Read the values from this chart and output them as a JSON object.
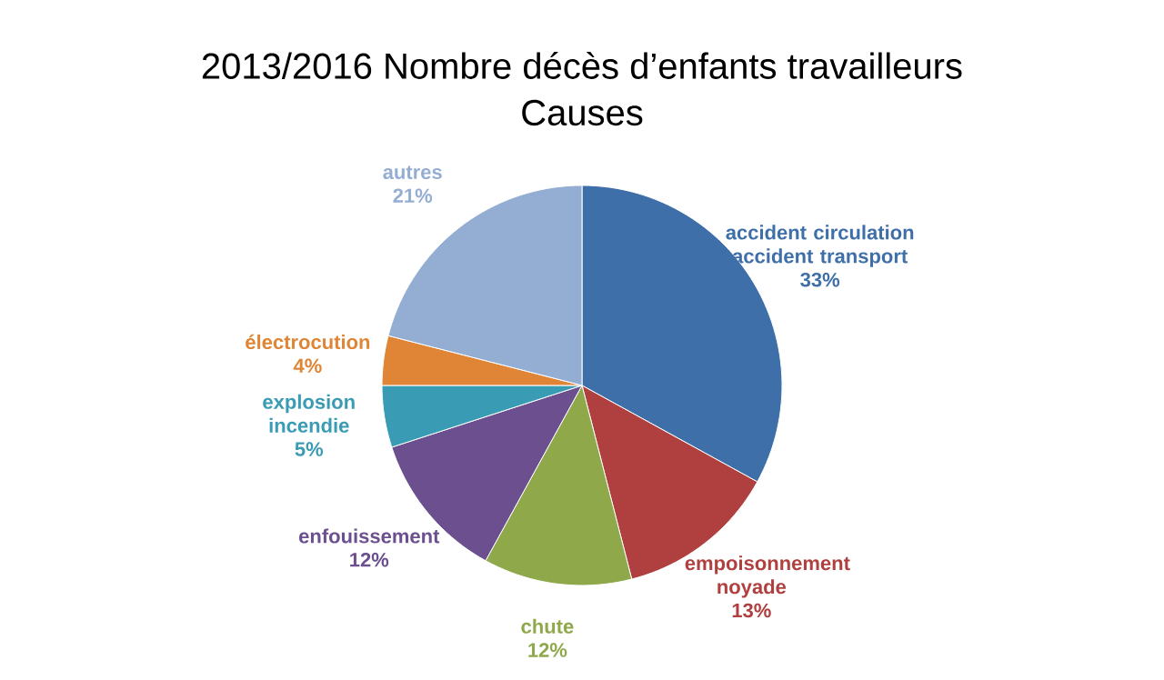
{
  "chart_data": {
    "type": "pie",
    "title": "2013/2016 Nombre décès d’enfants travailleurs",
    "subtitle": "Causes",
    "categories": [
      "accident circulation accident  transport",
      "empoisonnement noyade",
      "chute",
      "enfouissement",
      "explosion incendie",
      "électrocution",
      "autres"
    ],
    "values": [
      33,
      13,
      12,
      12,
      5,
      4,
      21
    ],
    "value_labels": [
      "33%",
      "13%",
      "12%",
      "12%",
      "5%",
      "4%",
      "21%"
    ],
    "colors": [
      "#3e6fa8",
      "#b04040",
      "#8fa84a",
      "#6b4f8f",
      "#3a9bb4",
      "#e08535",
      "#94aed3"
    ]
  }
}
